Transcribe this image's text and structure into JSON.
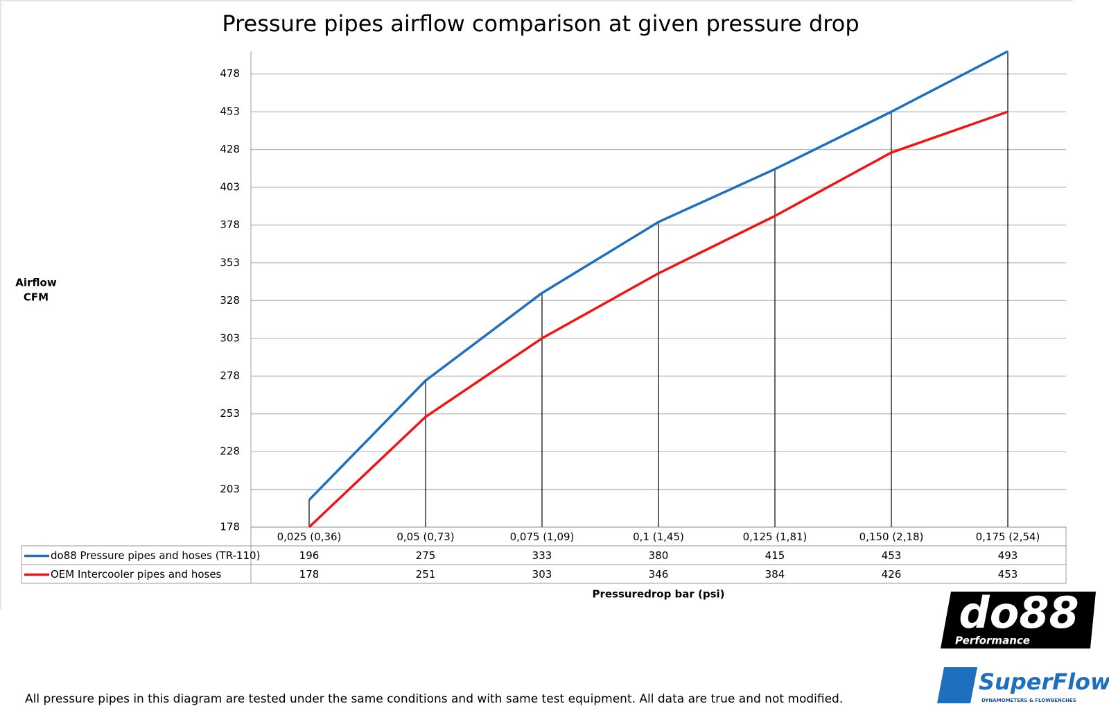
{
  "chart_data": {
    "type": "line",
    "title": "Pressure pipes airflow comparison at given pressure drop",
    "y_label": [
      "Airflow",
      "CFM"
    ],
    "x_label": "Pressuredrop bar (psi)",
    "categories": [
      "0,025 (0,36)",
      "0,05 (0,73)",
      "0,075 (1,09)",
      "0,1 (1,45)",
      "0,125 (1,81)",
      "0,150 (2,18)",
      "0,175 (2,54)"
    ],
    "series": [
      {
        "name": "do88 Pressure pipes and hoses (TR-110)",
        "color": "#1f6fbf",
        "values": [
          196,
          275,
          333,
          380,
          415,
          453,
          493
        ]
      },
      {
        "name": "OEM Intercooler pipes and hoses",
        "color": "#f01414",
        "values": [
          178,
          251,
          303,
          346,
          384,
          426,
          453
        ]
      }
    ],
    "ylim": [
      178,
      493
    ],
    "yticks": [
      178,
      203,
      228,
      253,
      278,
      303,
      328,
      353,
      378,
      403,
      428,
      453,
      478
    ],
    "grid": true,
    "drop_lines": true
  },
  "footnote": "All pressure pipes in this diagram are tested under the same conditions and with same test equipment. All data are true and not modified.",
  "logos": {
    "do88": "do88",
    "do88_sub": "Performance",
    "superflow": "SuperFlow",
    "superflow_sub": "DYNAMOMETERS & FLOWBENCHES"
  }
}
